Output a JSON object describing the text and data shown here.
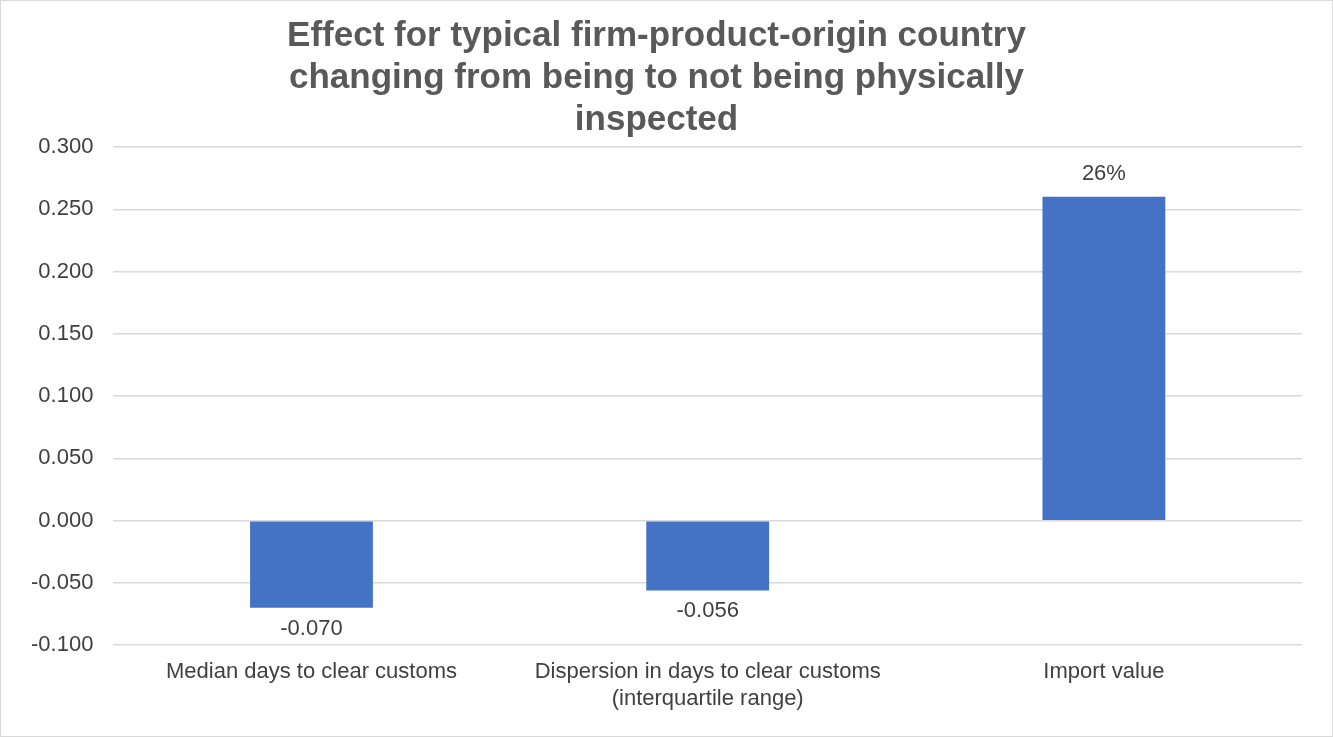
{
  "chart_data": {
    "type": "bar",
    "title": "Effect for typical firm-product-origin country changing from being to not being physically inspected",
    "categories": [
      "Median days to clear customs",
      "Dispersion in days to clear customs (interquartile range)",
      "Import value"
    ],
    "values": [
      -0.07,
      -0.056,
      0.26
    ],
    "value_labels": [
      "-0.070",
      "-0.056",
      "26%"
    ],
    "color": "#4472c4",
    "ylim": [
      -0.1,
      0.3
    ],
    "yticks": [
      {
        "value": -0.1,
        "label": "-0.100"
      },
      {
        "value": -0.05,
        "label": "-0.050"
      },
      {
        "value": 0,
        "label": "0.000"
      },
      {
        "value": 0.05,
        "label": "0.050"
      },
      {
        "value": 0.1,
        "label": "0.100"
      },
      {
        "value": 0.15,
        "label": "0.150"
      },
      {
        "value": 0.2,
        "label": "0.200"
      },
      {
        "value": 0.25,
        "label": "0.250"
      },
      {
        "value": 0.3,
        "label": "0.300"
      }
    ],
    "grid": "y"
  }
}
